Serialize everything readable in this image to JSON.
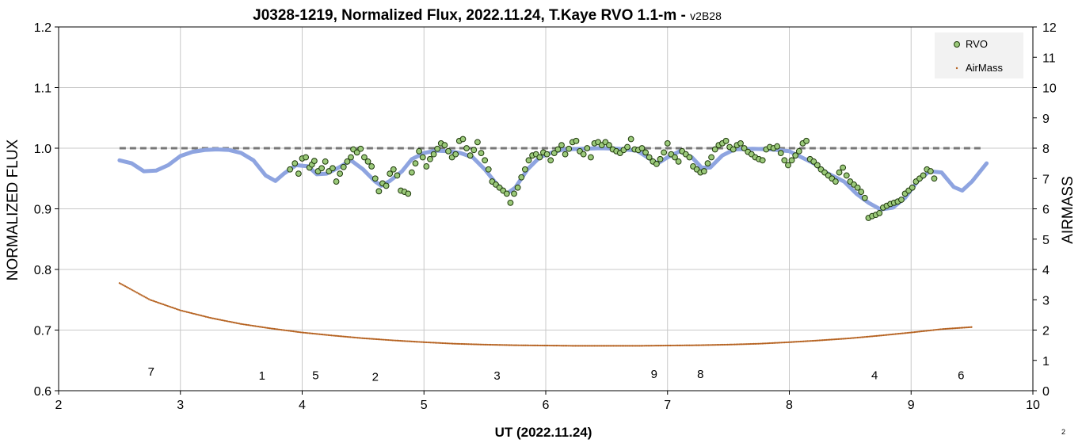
{
  "chart_data": {
    "type": "scatter",
    "title": "J0328-1219, Normalized Flux, 2022.11.24, T.Kaye RVO 1.1-m -",
    "title_suffix": "v2B28",
    "xlabel": "UT (2022.11.24)",
    "ylabel": "NORMALIZED FLUX",
    "y2label": "AIRMASS",
    "xlim": [
      2,
      10
    ],
    "ylim": [
      0.6,
      1.2
    ],
    "y2lim": [
      0,
      12
    ],
    "x_ticks": [
      "2",
      "3",
      "4",
      "5",
      "6",
      "7",
      "8",
      "9",
      "10"
    ],
    "y_ticks": [
      "0.6",
      "0.7",
      "0.8",
      "0.9",
      "1.0",
      "1.1",
      "1.2"
    ],
    "y2_ticks": [
      "0",
      "1",
      "2",
      "3",
      "4",
      "5",
      "6",
      "7",
      "8",
      "9",
      "10",
      "11",
      "12"
    ],
    "grid": true,
    "legend_position": "top-right",
    "legend": [
      "RVO",
      "AirMass"
    ],
    "colors": {
      "rvo_fill": "#9bc97a",
      "rvo_edge": "#1f3a0c",
      "model": "#8ea4e0",
      "airmass": "#b5611f",
      "reference": "#777777",
      "grid": "#c8c8c8"
    },
    "reference_line": {
      "y": 1.0,
      "x": [
        2.5,
        9.6
      ]
    },
    "series": [
      {
        "name": "RVO",
        "points": [
          [
            3.9,
            0.965
          ],
          [
            3.94,
            0.975
          ],
          [
            3.97,
            0.958
          ],
          [
            4.0,
            0.983
          ],
          [
            4.03,
            0.985
          ],
          [
            4.06,
            0.968
          ],
          [
            4.08,
            0.973
          ],
          [
            4.1,
            0.979
          ],
          [
            4.13,
            0.962
          ],
          [
            4.16,
            0.967
          ],
          [
            4.19,
            0.978
          ],
          [
            4.22,
            0.962
          ],
          [
            4.25,
            0.967
          ],
          [
            4.28,
            0.945
          ],
          [
            4.31,
            0.958
          ],
          [
            4.34,
            0.969
          ],
          [
            4.37,
            0.978
          ],
          [
            4.4,
            0.985
          ],
          [
            4.42,
            0.998
          ],
          [
            4.45,
            0.993
          ],
          [
            4.48,
            0.999
          ],
          [
            4.51,
            0.985
          ],
          [
            4.54,
            0.978
          ],
          [
            4.57,
            0.97
          ],
          [
            4.6,
            0.95
          ],
          [
            4.63,
            0.929
          ],
          [
            4.66,
            0.942
          ],
          [
            4.69,
            0.938
          ],
          [
            4.72,
            0.958
          ],
          [
            4.75,
            0.965
          ],
          [
            4.78,
            0.955
          ],
          [
            4.81,
            0.93
          ],
          [
            4.84,
            0.928
          ],
          [
            4.87,
            0.925
          ],
          [
            4.9,
            0.96
          ],
          [
            4.93,
            0.975
          ],
          [
            4.96,
            0.995
          ],
          [
            4.99,
            0.985
          ],
          [
            5.02,
            0.97
          ],
          [
            5.05,
            0.982
          ],
          [
            5.08,
            0.99
          ],
          [
            5.11,
            0.999
          ],
          [
            5.14,
            1.008
          ],
          [
            5.17,
            1.005
          ],
          [
            5.2,
            0.995
          ],
          [
            5.23,
            0.985
          ],
          [
            5.26,
            0.99
          ],
          [
            5.29,
            1.012
          ],
          [
            5.32,
            1.015
          ],
          [
            5.35,
            1.0
          ],
          [
            5.38,
            0.988
          ],
          [
            5.41,
            0.997
          ],
          [
            5.44,
            1.01
          ],
          [
            5.47,
            0.992
          ],
          [
            5.5,
            0.98
          ],
          [
            5.53,
            0.965
          ],
          [
            5.56,
            0.945
          ],
          [
            5.59,
            0.94
          ],
          [
            5.62,
            0.935
          ],
          [
            5.65,
            0.93
          ],
          [
            5.68,
            0.925
          ],
          [
            5.71,
            0.91
          ],
          [
            5.74,
            0.925
          ],
          [
            5.77,
            0.935
          ],
          [
            5.8,
            0.952
          ],
          [
            5.83,
            0.965
          ],
          [
            5.86,
            0.98
          ],
          [
            5.89,
            0.988
          ],
          [
            5.92,
            0.99
          ],
          [
            5.95,
            0.985
          ],
          [
            5.98,
            0.993
          ],
          [
            6.01,
            0.99
          ],
          [
            6.04,
            0.98
          ],
          [
            6.07,
            0.992
          ],
          [
            6.1,
            0.998
          ],
          [
            6.13,
            1.005
          ],
          [
            6.16,
            0.99
          ],
          [
            6.19,
            0.999
          ],
          [
            6.22,
            1.01
          ],
          [
            6.25,
            1.012
          ],
          [
            6.28,
            0.995
          ],
          [
            6.31,
            0.99
          ],
          [
            6.34,
            1.0
          ],
          [
            6.37,
            0.985
          ],
          [
            6.4,
            1.008
          ],
          [
            6.43,
            1.01
          ],
          [
            6.46,
            1.005
          ],
          [
            6.49,
            1.01
          ],
          [
            6.52,
            1.005
          ],
          [
            6.55,
            0.998
          ],
          [
            6.58,
            0.995
          ],
          [
            6.61,
            0.992
          ],
          [
            6.64,
            0.997
          ],
          [
            6.67,
            1.002
          ],
          [
            6.7,
            1.015
          ],
          [
            6.73,
            0.998
          ],
          [
            6.76,
            0.997
          ],
          [
            6.79,
            1.0
          ],
          [
            6.82,
            0.993
          ],
          [
            6.85,
            0.985
          ],
          [
            6.88,
            0.978
          ],
          [
            6.91,
            0.974
          ],
          [
            6.94,
            0.982
          ],
          [
            6.97,
            0.993
          ],
          [
            7.0,
            1.008
          ],
          [
            7.03,
            0.99
          ],
          [
            7.06,
            0.985
          ],
          [
            7.09,
            0.978
          ],
          [
            7.12,
            0.995
          ],
          [
            7.15,
            0.99
          ],
          [
            7.18,
            0.985
          ],
          [
            7.21,
            0.97
          ],
          [
            7.24,
            0.965
          ],
          [
            7.27,
            0.96
          ],
          [
            7.3,
            0.962
          ],
          [
            7.33,
            0.975
          ],
          [
            7.36,
            0.985
          ],
          [
            7.39,
            0.998
          ],
          [
            7.42,
            1.005
          ],
          [
            7.45,
            1.008
          ],
          [
            7.48,
            1.012
          ],
          [
            7.51,
            1.002
          ],
          [
            7.54,
            0.998
          ],
          [
            7.57,
            1.005
          ],
          [
            7.6,
            1.008
          ],
          [
            7.63,
            1.0
          ],
          [
            7.66,
            0.994
          ],
          [
            7.69,
            0.99
          ],
          [
            7.72,
            0.985
          ],
          [
            7.75,
            0.982
          ],
          [
            7.78,
            0.98
          ],
          [
            7.81,
            0.998
          ],
          [
            7.84,
            1.002
          ],
          [
            7.87,
            1.0
          ],
          [
            7.9,
            1.003
          ],
          [
            7.93,
            0.992
          ],
          [
            7.96,
            0.98
          ],
          [
            7.99,
            0.972
          ],
          [
            8.02,
            0.98
          ],
          [
            8.05,
            0.988
          ],
          [
            8.08,
            0.995
          ],
          [
            8.11,
            1.008
          ],
          [
            8.14,
            1.012
          ],
          [
            8.17,
            0.982
          ],
          [
            8.2,
            0.978
          ],
          [
            8.23,
            0.972
          ],
          [
            8.26,
            0.965
          ],
          [
            8.29,
            0.96
          ],
          [
            8.32,
            0.955
          ],
          [
            8.35,
            0.95
          ],
          [
            8.38,
            0.945
          ],
          [
            8.41,
            0.96
          ],
          [
            8.44,
            0.968
          ],
          [
            8.47,
            0.955
          ],
          [
            8.5,
            0.945
          ],
          [
            8.53,
            0.94
          ],
          [
            8.56,
            0.935
          ],
          [
            8.59,
            0.928
          ],
          [
            8.62,
            0.918
          ],
          [
            8.65,
            0.885
          ],
          [
            8.68,
            0.888
          ],
          [
            8.71,
            0.89
          ],
          [
            8.74,
            0.893
          ],
          [
            8.77,
            0.902
          ],
          [
            8.8,
            0.905
          ],
          [
            8.83,
            0.908
          ],
          [
            8.86,
            0.91
          ],
          [
            8.89,
            0.912
          ],
          [
            8.92,
            0.915
          ],
          [
            8.95,
            0.925
          ],
          [
            8.98,
            0.93
          ],
          [
            9.01,
            0.935
          ],
          [
            9.04,
            0.945
          ],
          [
            9.07,
            0.95
          ],
          [
            9.1,
            0.955
          ],
          [
            9.13,
            0.965
          ],
          [
            9.16,
            0.962
          ],
          [
            9.19,
            0.95
          ]
        ]
      },
      {
        "name": "AirMass",
        "x_start": 2.5,
        "x_end": 9.5,
        "values": [
          [
            2.5,
            3.55
          ],
          [
            2.75,
            3.0
          ],
          [
            3.0,
            2.65
          ],
          [
            3.25,
            2.4
          ],
          [
            3.5,
            2.2
          ],
          [
            3.75,
            2.05
          ],
          [
            4.0,
            1.92
          ],
          [
            4.25,
            1.82
          ],
          [
            4.5,
            1.73
          ],
          [
            4.75,
            1.66
          ],
          [
            5.0,
            1.6
          ],
          [
            5.25,
            1.55
          ],
          [
            5.5,
            1.52
          ],
          [
            5.75,
            1.5
          ],
          [
            6.0,
            1.49
          ],
          [
            6.25,
            1.48
          ],
          [
            6.5,
            1.48
          ],
          [
            6.75,
            1.48
          ],
          [
            7.0,
            1.49
          ],
          [
            7.25,
            1.5
          ],
          [
            7.5,
            1.52
          ],
          [
            7.75,
            1.55
          ],
          [
            8.0,
            1.6
          ],
          [
            8.25,
            1.66
          ],
          [
            8.5,
            1.73
          ],
          [
            8.75,
            1.82
          ],
          [
            9.0,
            1.92
          ],
          [
            9.25,
            2.03
          ],
          [
            9.5,
            2.1
          ]
        ]
      },
      {
        "model": [
          [
            2.5,
            0.98
          ],
          [
            2.6,
            0.975
          ],
          [
            2.7,
            0.962
          ],
          [
            2.8,
            0.963
          ],
          [
            2.9,
            0.972
          ],
          [
            3.0,
            0.987
          ],
          [
            3.1,
            0.994
          ],
          [
            3.2,
            0.997
          ],
          [
            3.3,
            0.998
          ],
          [
            3.4,
            0.997
          ],
          [
            3.5,
            0.992
          ],
          [
            3.6,
            0.98
          ],
          [
            3.7,
            0.955
          ],
          [
            3.78,
            0.946
          ],
          [
            3.85,
            0.958
          ],
          [
            3.95,
            0.972
          ],
          [
            4.05,
            0.97
          ],
          [
            4.12,
            0.957
          ],
          [
            4.2,
            0.958
          ],
          [
            4.3,
            0.968
          ],
          [
            4.4,
            0.98
          ],
          [
            4.5,
            0.965
          ],
          [
            4.6,
            0.945
          ],
          [
            4.65,
            0.938
          ],
          [
            4.72,
            0.946
          ],
          [
            4.82,
            0.962
          ],
          [
            4.9,
            0.982
          ],
          [
            5.0,
            0.992
          ],
          [
            5.1,
            0.996
          ],
          [
            5.2,
            0.995
          ],
          [
            5.3,
            0.992
          ],
          [
            5.4,
            0.985
          ],
          [
            5.5,
            0.965
          ],
          [
            5.6,
            0.94
          ],
          [
            5.68,
            0.925
          ],
          [
            5.75,
            0.935
          ],
          [
            5.85,
            0.965
          ],
          [
            5.95,
            0.985
          ],
          [
            6.05,
            0.993
          ],
          [
            6.15,
            0.998
          ],
          [
            6.3,
            0.999
          ],
          [
            6.45,
            1.0
          ],
          [
            6.6,
            0.999
          ],
          [
            6.75,
            0.996
          ],
          [
            6.85,
            0.983
          ],
          [
            6.92,
            0.975
          ],
          [
            7.0,
            0.985
          ],
          [
            7.1,
            0.995
          ],
          [
            7.2,
            0.985
          ],
          [
            7.28,
            0.968
          ],
          [
            7.35,
            0.968
          ],
          [
            7.45,
            0.988
          ],
          [
            7.55,
            0.998
          ],
          [
            7.7,
            0.999
          ],
          [
            7.85,
            0.998
          ],
          [
            8.0,
            0.995
          ],
          [
            8.1,
            0.985
          ],
          [
            8.2,
            0.975
          ],
          [
            8.3,
            0.96
          ],
          [
            8.45,
            0.945
          ],
          [
            8.55,
            0.925
          ],
          [
            8.65,
            0.91
          ],
          [
            8.75,
            0.899
          ],
          [
            8.85,
            0.902
          ],
          [
            8.95,
            0.918
          ],
          [
            9.05,
            0.945
          ],
          [
            9.15,
            0.962
          ],
          [
            9.25,
            0.96
          ],
          [
            9.35,
            0.936
          ],
          [
            9.42,
            0.93
          ],
          [
            9.5,
            0.945
          ],
          [
            9.62,
            0.975
          ]
        ]
      }
    ],
    "annotations": [
      {
        "text": "7",
        "x": 2.76,
        "y": 0.633
      },
      {
        "text": "1",
        "x": 3.67,
        "y": 0.626
      },
      {
        "text": "5",
        "x": 4.11,
        "y": 0.627
      },
      {
        "text": "2",
        "x": 4.6,
        "y": 0.624
      },
      {
        "text": "3",
        "x": 5.6,
        "y": 0.626
      },
      {
        "text": "9",
        "x": 6.89,
        "y": 0.629
      },
      {
        "text": "8",
        "x": 7.27,
        "y": 0.629
      },
      {
        "text": "4",
        "x": 8.7,
        "y": 0.627
      },
      {
        "text": "6",
        "x": 9.41,
        "y": 0.627
      }
    ],
    "page_number": "2"
  }
}
